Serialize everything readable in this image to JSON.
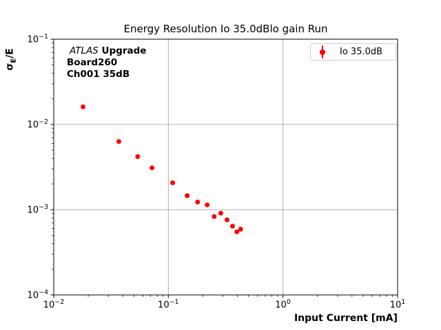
{
  "figure": {
    "title": "Energy Resolution Io 35.0dBlo gain Run",
    "xlabel": "Input Current [mA]",
    "ylabel": {
      "sigma": "σ",
      "sub": "E",
      "rest": "/E"
    },
    "annotation": {
      "experiment": "ATLAS",
      "program": "Upgrade",
      "board": "Board260",
      "channel": "Ch001 35dB"
    },
    "legend_label": "Io 35.0dB",
    "colors": {
      "marker": "#ff0000",
      "grid": "#b0b0b0",
      "legend_border": "#cccccc",
      "axis": "#000000",
      "background": "#ffffff"
    }
  },
  "chart_data": {
    "type": "scatter",
    "title": "Energy Resolution Io 35.0dBlo gain Run",
    "xlabel": "Input Current [mA]",
    "ylabel": "σ_E/E",
    "xscale": "log",
    "yscale": "log",
    "xlim": [
      0.01,
      10
    ],
    "ylim": [
      0.0001,
      0.1
    ],
    "grid": "major",
    "legend_position": "upper right",
    "xtick_exponents": [
      -2,
      -1,
      0,
      1
    ],
    "ytick_exponents": [
      -1,
      -2,
      -3,
      -4
    ],
    "series": [
      {
        "name": "Io 35.0dB",
        "color": "#ff0000",
        "marker": "circle",
        "x": [
          0.018,
          0.037,
          0.054,
          0.072,
          0.109,
          0.146,
          0.18,
          0.218,
          0.251,
          0.287,
          0.325,
          0.363,
          0.396,
          0.427
        ],
        "y": [
          0.0161,
          0.0063,
          0.0042,
          0.0031,
          0.00207,
          0.00146,
          0.00123,
          0.00114,
          0.00083,
          0.00091,
          0.00076,
          0.00064,
          0.00055,
          0.00059
        ],
        "yerr": [
          0.0008,
          0.00025,
          0.00018,
          0.00013,
          9e-05,
          7e-05,
          6e-05,
          5e-05,
          4e-05,
          4e-05,
          4e-05,
          3e-05,
          3e-05,
          3e-05
        ]
      }
    ]
  }
}
